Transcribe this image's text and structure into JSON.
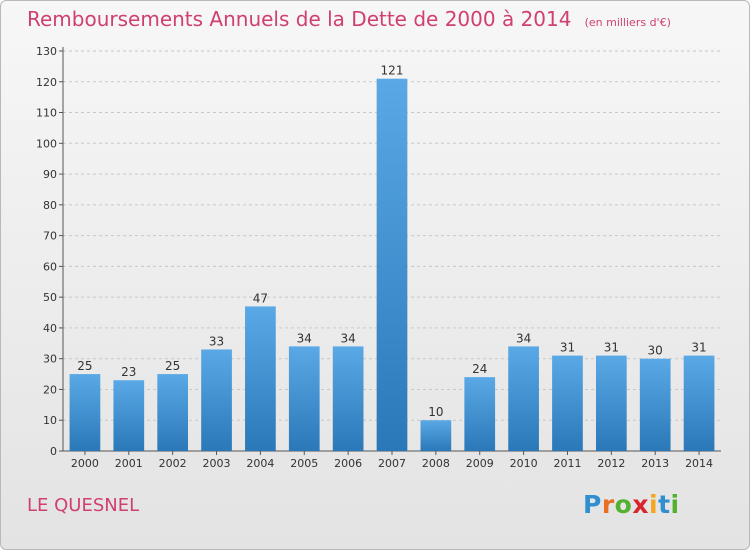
{
  "header": {
    "title": "Remboursements Annuels de la Dette de 2000 à 2014",
    "unit": "(en milliers d'€)"
  },
  "footer": {
    "commune": "LE QUESNEL",
    "logo_text": "Proxiti"
  },
  "colors": {
    "title": "#d0406e",
    "bar_light": "#5aa9e6",
    "bar_dark": "#2b78b8"
  },
  "chart_data": {
    "type": "bar",
    "title": "Remboursements Annuels de la Dette de 2000 à 2014",
    "subtitle": "(en milliers d'€)",
    "categories": [
      "2000",
      "2001",
      "2002",
      "2003",
      "2004",
      "2005",
      "2006",
      "2007",
      "2008",
      "2009",
      "2010",
      "2011",
      "2012",
      "2013",
      "2014"
    ],
    "values": [
      25,
      23,
      25,
      33,
      47,
      34,
      34,
      121,
      10,
      24,
      34,
      31,
      31,
      30,
      31
    ],
    "xlabel": "",
    "ylabel": "",
    "ylim": [
      0,
      130
    ],
    "yticks": [
      0,
      10,
      20,
      30,
      40,
      50,
      60,
      70,
      80,
      90,
      100,
      110,
      120,
      130
    ],
    "grid": "horizontal-dashed",
    "data_labels": true
  }
}
